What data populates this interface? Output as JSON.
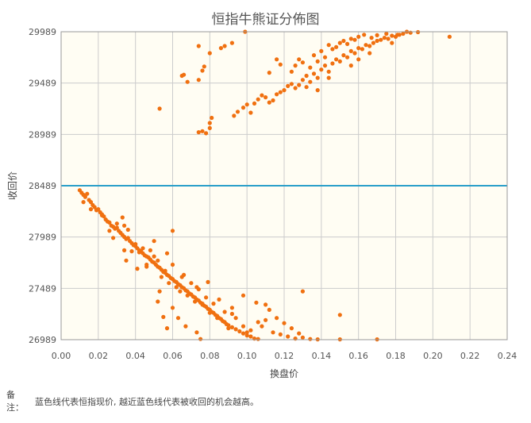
{
  "page": {
    "note_label": "备注：",
    "note_text": "蓝色线代表恒指现价, 越近蓝色线代表被收回的机会越高。"
  },
  "chart_data": {
    "type": "scatter",
    "title": "恒指牛熊证分佈图",
    "xlabel": "换盘价",
    "ylabel": "收回价",
    "xlim": [
      0,
      0.24
    ],
    "ylim": [
      26989,
      29989
    ],
    "x_ticks": [
      "0.00",
      "0.02",
      "0.04",
      "0.06",
      "0.08",
      "0.10",
      "0.12",
      "0.14",
      "0.16",
      "0.18",
      "0.20",
      "0.22",
      "0.24"
    ],
    "y_ticks": [
      "26989",
      "27489",
      "27989",
      "28489",
      "28989",
      "29489",
      "29989"
    ],
    "grid": true,
    "colors": {
      "points": "#f07010",
      "current_line": "#2a9fc9",
      "plot_bg": "#fffdf3",
      "grid": "#cccccc"
    },
    "current_price_line": {
      "y": 28489
    },
    "points": [
      [
        0.01,
        28445
      ],
      [
        0.011,
        28420
      ],
      [
        0.012,
        28400
      ],
      [
        0.013,
        28380
      ],
      [
        0.014,
        28410
      ],
      [
        0.015,
        28350
      ],
      [
        0.016,
        28330
      ],
      [
        0.017,
        28300
      ],
      [
        0.018,
        28280
      ],
      [
        0.019,
        28250
      ],
      [
        0.02,
        28260
      ],
      [
        0.021,
        28230
      ],
      [
        0.022,
        28210
      ],
      [
        0.023,
        28190
      ],
      [
        0.024,
        28160
      ],
      [
        0.025,
        28140
      ],
      [
        0.026,
        28130
      ],
      [
        0.027,
        28100
      ],
      [
        0.028,
        28090
      ],
      [
        0.029,
        28070
      ],
      [
        0.03,
        28080
      ],
      [
        0.031,
        28050
      ],
      [
        0.032,
        28030
      ],
      [
        0.033,
        28010
      ],
      [
        0.034,
        27990
      ],
      [
        0.035,
        27970
      ],
      [
        0.036,
        27980
      ],
      [
        0.037,
        27950
      ],
      [
        0.038,
        27930
      ],
      [
        0.039,
        27910
      ],
      [
        0.04,
        27900
      ],
      [
        0.041,
        27880
      ],
      [
        0.042,
        27860
      ],
      [
        0.043,
        27850
      ],
      [
        0.044,
        27830
      ],
      [
        0.045,
        27810
      ],
      [
        0.046,
        27800
      ],
      [
        0.047,
        27790
      ],
      [
        0.048,
        27770
      ],
      [
        0.049,
        27750
      ],
      [
        0.05,
        27740
      ],
      [
        0.051,
        27720
      ],
      [
        0.052,
        27700
      ],
      [
        0.053,
        27690
      ],
      [
        0.054,
        27670
      ],
      [
        0.055,
        27650
      ],
      [
        0.056,
        27640
      ],
      [
        0.057,
        27620
      ],
      [
        0.058,
        27610
      ],
      [
        0.059,
        27590
      ],
      [
        0.06,
        27580
      ],
      [
        0.061,
        27560
      ],
      [
        0.062,
        27550
      ],
      [
        0.063,
        27530
      ],
      [
        0.064,
        27520
      ],
      [
        0.065,
        27500
      ],
      [
        0.066,
        27490
      ],
      [
        0.067,
        27470
      ],
      [
        0.068,
        27460
      ],
      [
        0.069,
        27440
      ],
      [
        0.07,
        27430
      ],
      [
        0.071,
        27410
      ],
      [
        0.072,
        27400
      ],
      [
        0.073,
        27380
      ],
      [
        0.074,
        27370
      ],
      [
        0.075,
        27350
      ],
      [
        0.076,
        27340
      ],
      [
        0.077,
        27320
      ],
      [
        0.078,
        27310
      ],
      [
        0.079,
        27290
      ],
      [
        0.08,
        27280
      ],
      [
        0.081,
        27260
      ],
      [
        0.082,
        27250
      ],
      [
        0.083,
        27230
      ],
      [
        0.084,
        27220
      ],
      [
        0.085,
        27200
      ],
      [
        0.086,
        27190
      ],
      [
        0.087,
        27170
      ],
      [
        0.088,
        27160
      ],
      [
        0.089,
        27140
      ],
      [
        0.09,
        27130
      ],
      [
        0.092,
        27110
      ],
      [
        0.094,
        27090
      ],
      [
        0.096,
        27070
      ],
      [
        0.098,
        27050
      ],
      [
        0.1,
        27030
      ],
      [
        0.102,
        27020
      ],
      [
        0.104,
        27000
      ],
      [
        0.106,
        26995
      ],
      [
        0.11,
        27330
      ],
      [
        0.112,
        27280
      ],
      [
        0.116,
        27200
      ],
      [
        0.12,
        27150
      ],
      [
        0.124,
        27100
      ],
      [
        0.128,
        27050
      ],
      [
        0.13,
        27010
      ],
      [
        0.134,
        26995
      ],
      [
        0.138,
        26992
      ],
      [
        0.012,
        28330
      ],
      [
        0.016,
        28260
      ],
      [
        0.022,
        28200
      ],
      [
        0.026,
        28050
      ],
      [
        0.028,
        27980
      ],
      [
        0.034,
        28100
      ],
      [
        0.036,
        28060
      ],
      [
        0.04,
        27920
      ],
      [
        0.042,
        27840
      ],
      [
        0.044,
        27880
      ],
      [
        0.046,
        27700
      ],
      [
        0.05,
        27800
      ],
      [
        0.052,
        27760
      ],
      [
        0.054,
        27600
      ],
      [
        0.056,
        27660
      ],
      [
        0.058,
        27540
      ],
      [
        0.06,
        27720
      ],
      [
        0.062,
        27500
      ],
      [
        0.064,
        27460
      ],
      [
        0.066,
        27620
      ],
      [
        0.068,
        27420
      ],
      [
        0.07,
        27540
      ],
      [
        0.072,
        27360
      ],
      [
        0.074,
        27480
      ],
      [
        0.076,
        27330
      ],
      [
        0.078,
        27400
      ],
      [
        0.08,
        27250
      ],
      [
        0.082,
        27340
      ],
      [
        0.084,
        27200
      ],
      [
        0.088,
        27260
      ],
      [
        0.09,
        27100
      ],
      [
        0.094,
        27200
      ],
      [
        0.098,
        27120
      ],
      [
        0.102,
        27080
      ],
      [
        0.106,
        27160
      ],
      [
        0.108,
        27120
      ],
      [
        0.114,
        27060
      ],
      [
        0.118,
        27040
      ],
      [
        0.122,
        27020
      ],
      [
        0.126,
        27000
      ],
      [
        0.03,
        28120
      ],
      [
        0.033,
        28180
      ],
      [
        0.038,
        27850
      ],
      [
        0.048,
        27860
      ],
      [
        0.05,
        27950
      ],
      [
        0.057,
        27830
      ],
      [
        0.06,
        28050
      ],
      [
        0.065,
        27600
      ],
      [
        0.073,
        27500
      ],
      [
        0.079,
        27550
      ],
      [
        0.085,
        27380
      ],
      [
        0.092,
        27300
      ],
      [
        0.098,
        27420
      ],
      [
        0.105,
        27350
      ],
      [
        0.11,
        27180
      ],
      [
        0.13,
        27460
      ],
      [
        0.034,
        27860
      ],
      [
        0.035,
        27760
      ],
      [
        0.041,
        27680
      ],
      [
        0.046,
        27720
      ],
      [
        0.052,
        27360
      ],
      [
        0.053,
        27460
      ],
      [
        0.055,
        27210
      ],
      [
        0.057,
        27100
      ],
      [
        0.063,
        27200
      ],
      [
        0.067,
        27120
      ],
      [
        0.073,
        27060
      ],
      [
        0.075,
        26995
      ],
      [
        0.06,
        27300
      ],
      [
        0.092,
        27240
      ],
      [
        0.1,
        27060
      ],
      [
        0.15,
        27230
      ],
      [
        0.15,
        26992
      ],
      [
        0.17,
        26992
      ],
      [
        0.053,
        29240
      ],
      [
        0.065,
        29560
      ],
      [
        0.066,
        29570
      ],
      [
        0.068,
        29500
      ],
      [
        0.074,
        29520
      ],
      [
        0.074,
        29850
      ],
      [
        0.076,
        29610
      ],
      [
        0.077,
        29650
      ],
      [
        0.08,
        29780
      ],
      [
        0.086,
        29830
      ],
      [
        0.088,
        29850
      ],
      [
        0.092,
        29880
      ],
      [
        0.074,
        29010
      ],
      [
        0.076,
        29020
      ],
      [
        0.078,
        29000
      ],
      [
        0.08,
        29050
      ],
      [
        0.08,
        29100
      ],
      [
        0.081,
        29150
      ],
      [
        0.093,
        29170
      ],
      [
        0.095,
        29210
      ],
      [
        0.098,
        29250
      ],
      [
        0.1,
        29280
      ],
      [
        0.102,
        29200
      ],
      [
        0.104,
        29290
      ],
      [
        0.106,
        29330
      ],
      [
        0.108,
        29370
      ],
      [
        0.11,
        29350
      ],
      [
        0.112,
        29300
      ],
      [
        0.114,
        29320
      ],
      [
        0.116,
        29380
      ],
      [
        0.118,
        29400
      ],
      [
        0.12,
        29420
      ],
      [
        0.122,
        29460
      ],
      [
        0.124,
        29480
      ],
      [
        0.126,
        29440
      ],
      [
        0.128,
        29470
      ],
      [
        0.13,
        29520
      ],
      [
        0.132,
        29560
      ],
      [
        0.134,
        29500
      ],
      [
        0.136,
        29580
      ],
      [
        0.138,
        29540
      ],
      [
        0.14,
        29620
      ],
      [
        0.142,
        29660
      ],
      [
        0.144,
        29600
      ],
      [
        0.146,
        29680
      ],
      [
        0.148,
        29720
      ],
      [
        0.15,
        29700
      ],
      [
        0.152,
        29760
      ],
      [
        0.154,
        29740
      ],
      [
        0.156,
        29800
      ],
      [
        0.158,
        29780
      ],
      [
        0.16,
        29830
      ],
      [
        0.162,
        29820
      ],
      [
        0.164,
        29860
      ],
      [
        0.166,
        29850
      ],
      [
        0.168,
        29880
      ],
      [
        0.17,
        29900
      ],
      [
        0.172,
        29910
      ],
      [
        0.174,
        29930
      ],
      [
        0.176,
        29920
      ],
      [
        0.178,
        29950
      ],
      [
        0.18,
        29940
      ],
      [
        0.182,
        29960
      ],
      [
        0.184,
        29970
      ],
      [
        0.188,
        29980
      ],
      [
        0.192,
        29985
      ],
      [
        0.209,
        29940
      ],
      [
        0.099,
        29989
      ],
      [
        0.112,
        29590
      ],
      [
        0.116,
        29720
      ],
      [
        0.118,
        29670
      ],
      [
        0.124,
        29600
      ],
      [
        0.126,
        29660
      ],
      [
        0.128,
        29720
      ],
      [
        0.13,
        29690
      ],
      [
        0.134,
        29640
      ],
      [
        0.136,
        29760
      ],
      [
        0.138,
        29700
      ],
      [
        0.14,
        29800
      ],
      [
        0.142,
        29740
      ],
      [
        0.144,
        29860
      ],
      [
        0.146,
        29820
      ],
      [
        0.148,
        29840
      ],
      [
        0.15,
        29880
      ],
      [
        0.152,
        29900
      ],
      [
        0.154,
        29870
      ],
      [
        0.156,
        29920
      ],
      [
        0.158,
        29910
      ],
      [
        0.16,
        29940
      ],
      [
        0.163,
        29960
      ],
      [
        0.167,
        29930
      ],
      [
        0.17,
        29955
      ],
      [
        0.175,
        29970
      ],
      [
        0.178,
        29880
      ],
      [
        0.181,
        29960
      ],
      [
        0.186,
        29989
      ],
      [
        0.132,
        29450
      ],
      [
        0.138,
        29420
      ],
      [
        0.144,
        29540
      ],
      [
        0.156,
        29660
      ],
      [
        0.16,
        29720
      ],
      [
        0.166,
        29780
      ]
    ]
  }
}
